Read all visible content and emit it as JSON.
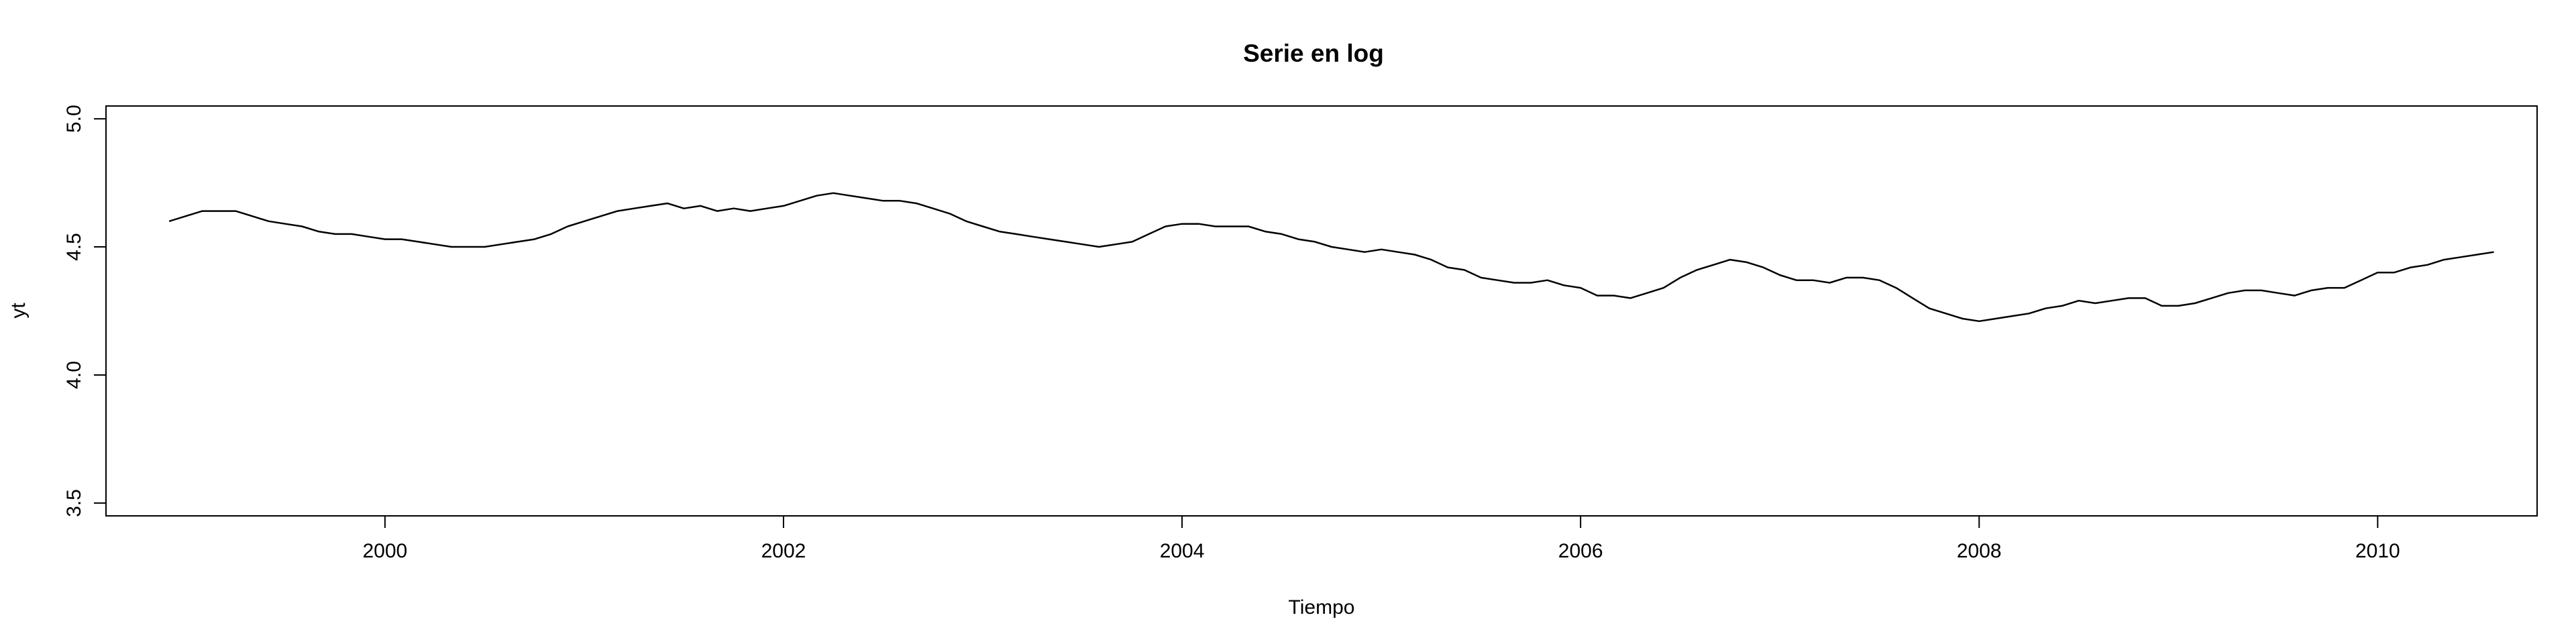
{
  "chart_data": {
    "type": "line",
    "title": "Serie en log",
    "xlabel": "Tiempo",
    "ylabel": "yt",
    "xlim": [
      1998.6,
      2010.8
    ],
    "ylim": [
      3.45,
      5.05
    ],
    "x_ticks": [
      2000,
      2002,
      2004,
      2006,
      2008,
      2010
    ],
    "x_tick_labels": [
      "2000",
      "2002",
      "2004",
      "2006",
      "2008",
      "2010"
    ],
    "y_ticks": [
      3.5,
      4.0,
      4.5,
      5.0
    ],
    "y_tick_labels": [
      "3.5",
      "4.0",
      "4.5",
      "5.0"
    ],
    "grid": false,
    "line_color": "#000000",
    "series": [
      {
        "x_start": 1998.917,
        "x_step": 0.08333,
        "values": [
          4.6,
          4.62,
          4.64,
          4.64,
          4.64,
          4.62,
          4.6,
          4.59,
          4.58,
          4.56,
          4.55,
          4.55,
          4.54,
          4.53,
          4.53,
          4.52,
          4.51,
          4.5,
          4.5,
          4.5,
          4.51,
          4.52,
          4.53,
          4.55,
          4.58,
          4.6,
          4.62,
          4.64,
          4.65,
          4.66,
          4.67,
          4.65,
          4.66,
          4.64,
          4.65,
          4.64,
          4.65,
          4.66,
          4.68,
          4.7,
          4.71,
          4.7,
          4.69,
          4.68,
          4.68,
          4.67,
          4.65,
          4.63,
          4.6,
          4.58,
          4.56,
          4.55,
          4.54,
          4.53,
          4.52,
          4.51,
          4.5,
          4.51,
          4.52,
          4.55,
          4.58,
          4.59,
          4.59,
          4.58,
          4.58,
          4.58,
          4.56,
          4.55,
          4.53,
          4.52,
          4.5,
          4.49,
          4.48,
          4.49,
          4.48,
          4.47,
          4.45,
          4.42,
          4.41,
          4.38,
          4.37,
          4.36,
          4.36,
          4.37,
          4.35,
          4.34,
          4.31,
          4.31,
          4.3,
          4.32,
          4.34,
          4.38,
          4.41,
          4.43,
          4.45,
          4.44,
          4.42,
          4.39,
          4.37,
          4.37,
          4.36,
          4.38,
          4.38,
          4.37,
          4.34,
          4.3,
          4.26,
          4.24,
          4.22,
          4.21,
          4.22,
          4.23,
          4.24,
          4.26,
          4.27,
          4.29,
          4.28,
          4.29,
          4.3,
          4.3,
          4.27,
          4.27,
          4.28,
          4.3,
          4.32,
          4.33,
          4.33,
          4.32,
          4.31,
          4.33,
          4.34,
          4.34,
          4.37,
          4.4,
          4.4,
          4.42,
          4.43,
          4.45,
          4.46,
          4.47,
          4.48
        ]
      }
    ]
  }
}
